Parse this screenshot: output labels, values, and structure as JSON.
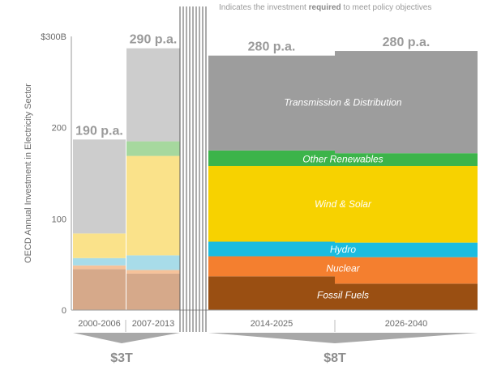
{
  "note": {
    "prefix": "Indicates the investment ",
    "emphasis": "required",
    "suffix": " to meet policy objectives"
  },
  "chart_data": {
    "type": "bar",
    "stacked": true,
    "ylabel": "OECD Annual Investment in Electricity Sector",
    "ylim": [
      0,
      300
    ],
    "yticks": [
      {
        "value": 0,
        "label": "0"
      },
      {
        "value": 100,
        "label": "100"
      },
      {
        "value": 200,
        "label": "200"
      },
      {
        "value": 300,
        "label": "$300B"
      }
    ],
    "categories": [
      "2000-2006",
      "2007-2013",
      "2014-2025",
      "2026-2040"
    ],
    "totals_labels": [
      "190 p.a.",
      "290 p.a.",
      "280 p.a.",
      "280 p.a."
    ],
    "series": [
      {
        "name": "Fossil Fuels",
        "color_hist": "#d6a98a",
        "color_proj": "#9a4f12",
        "values": [
          45,
          40,
          37,
          29
        ]
      },
      {
        "name": "Nuclear",
        "color_hist": "#f5c29a",
        "color_proj": "#f47f2f",
        "values": [
          4,
          4,
          22,
          29
        ]
      },
      {
        "name": "Hydro",
        "color_hist": "#a8dce9",
        "color_proj": "#1bbcdf",
        "values": [
          8,
          16,
          16,
          16
        ]
      },
      {
        "name": "Wind & Solar",
        "color_hist": "#fae28a",
        "color_proj": "#f7d200",
        "values": [
          27,
          109,
          83,
          84
        ]
      },
      {
        "name": "Other Renewables",
        "color_hist": "#a6d89e",
        "color_proj": "#3cb44a",
        "values": [
          0,
          16,
          17,
          14
        ]
      },
      {
        "name": "Transmission & Distribution",
        "color_hist": "#cdcdcd",
        "color_proj": "#9d9d9d",
        "values": [
          103,
          102,
          104,
          112
        ]
      }
    ],
    "group_labels": [
      {
        "label": "$3T",
        "covers": [
          "2000-2006",
          "2007-2013"
        ]
      },
      {
        "label": "$8T",
        "covers": [
          "2014-2025",
          "2026-2040"
        ]
      }
    ],
    "legend": "inline"
  }
}
